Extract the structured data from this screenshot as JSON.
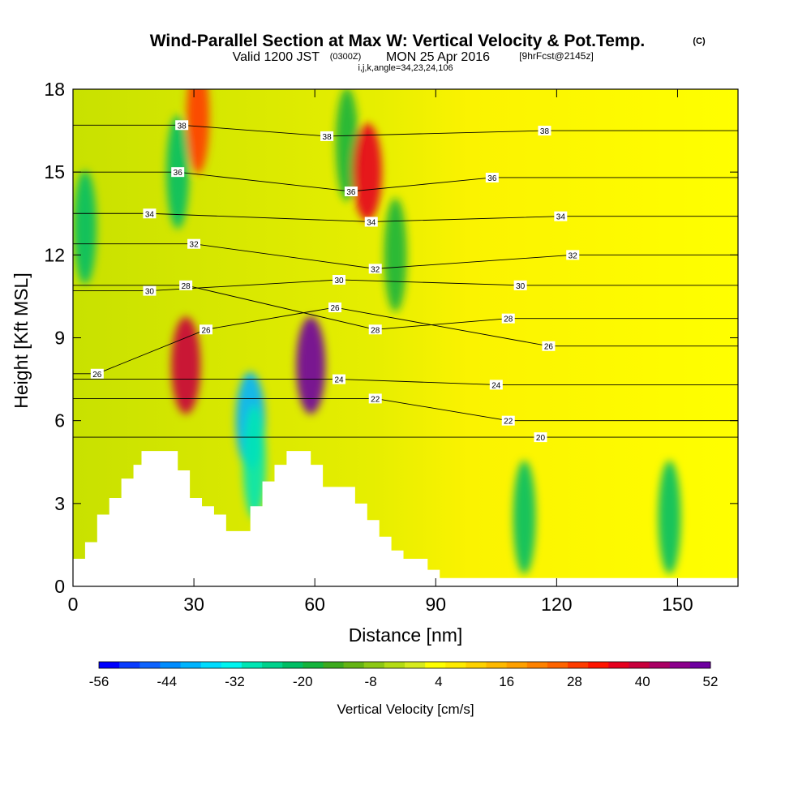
{
  "title": {
    "main": "Wind-Parallel Section at Max W: Vertical Velocity & Pot.Temp.",
    "copyright": "(C)",
    "valid_prefix": "Valid 1200 JST",
    "utc": "(0300Z)",
    "date": "MON 25 Apr 2016",
    "forecast": "[9hrFcst@2145z]",
    "indices": "i,j,k,angle=34,23,24,106"
  },
  "chart_data": {
    "type": "heatmap",
    "xlabel": "Distance [nm]",
    "ylabel": "Height [Kft MSL]",
    "xlim": [
      0,
      165
    ],
    "ylim": [
      0,
      18
    ],
    "x_ticks": [
      0,
      30,
      60,
      90,
      120,
      150
    ],
    "y_ticks": [
      0,
      3,
      6,
      9,
      12,
      15,
      18
    ],
    "colorbar": {
      "label": "Vertical Velocity [cm/s]",
      "min": -56,
      "max": 52,
      "step": 4,
      "tick_values": [
        -56,
        -44,
        -32,
        -20,
        -8,
        4,
        16,
        28,
        40,
        52
      ],
      "colors": [
        "#0000ff",
        "#0a3cff",
        "#0f64ff",
        "#008cff",
        "#00b4ff",
        "#00dcff",
        "#00f5f0",
        "#00e6b4",
        "#00d28c",
        "#00be64",
        "#14b43c",
        "#3caa1e",
        "#64b414",
        "#8cc814",
        "#b4dc14",
        "#d7eb1e",
        "#ffff00",
        "#ffeb00",
        "#ffd200",
        "#ffb900",
        "#ffa000",
        "#ff8200",
        "#ff6400",
        "#ff3c00",
        "#ff1400",
        "#e6001e",
        "#c8003c",
        "#aa0064",
        "#8c008c",
        "#6e00a0"
      ]
    },
    "vertical_velocity_cells_cm_s": [
      {
        "x": 3,
        "y": 13,
        "value": -22,
        "note": "left edge downdraft column"
      },
      {
        "x": 26,
        "y": 15,
        "value": -22
      },
      {
        "x": 31,
        "y": 17,
        "value": 28
      },
      {
        "x": 28,
        "y": 8,
        "value": 40
      },
      {
        "x": 44,
        "y": 6,
        "value": -40
      },
      {
        "x": 45,
        "y": 4.5,
        "value": -30
      },
      {
        "x": 59,
        "y": 8,
        "value": 52
      },
      {
        "x": 68,
        "y": 16,
        "value": -20
      },
      {
        "x": 73,
        "y": 15,
        "value": 36
      },
      {
        "x": 80,
        "y": 12,
        "value": -20
      },
      {
        "x": 112,
        "y": 2.5,
        "value": -22
      },
      {
        "x": 148,
        "y": 2.5,
        "value": -22
      }
    ],
    "potential_temperature_contours": [
      {
        "value": 20,
        "label": "20",
        "label_at": [
          116,
          5.4
        ]
      },
      {
        "value": 22,
        "label": "22",
        "label_at": [
          75,
          6.8
        ]
      },
      {
        "value": 22,
        "label": "22",
        "label_at": [
          108,
          6.0
        ]
      },
      {
        "value": 24,
        "label": "24",
        "label_at": [
          66,
          7.5
        ]
      },
      {
        "value": 24,
        "label": "24",
        "label_at": [
          105,
          7.3
        ]
      },
      {
        "value": 26,
        "label": "26",
        "label_at": [
          6,
          7.7
        ]
      },
      {
        "value": 26,
        "label": "26",
        "label_at": [
          33,
          9.3
        ]
      },
      {
        "value": 26,
        "label": "26",
        "label_at": [
          65,
          10.1
        ]
      },
      {
        "value": 26,
        "label": "26",
        "label_at": [
          118,
          8.7
        ]
      },
      {
        "value": 28,
        "label": "28",
        "label_at": [
          28,
          10.9
        ]
      },
      {
        "value": 28,
        "label": "28",
        "label_at": [
          75,
          9.3
        ]
      },
      {
        "value": 28,
        "label": "28",
        "label_at": [
          108,
          9.7
        ]
      },
      {
        "value": 30,
        "label": "30",
        "label_at": [
          19,
          10.7
        ]
      },
      {
        "value": 30,
        "label": "30",
        "label_at": [
          66,
          11.1
        ]
      },
      {
        "value": 30,
        "label": "30",
        "label_at": [
          111,
          10.9
        ]
      },
      {
        "value": 32,
        "label": "32",
        "label_at": [
          30,
          12.4
        ]
      },
      {
        "value": 32,
        "label": "32",
        "label_at": [
          75,
          11.5
        ]
      },
      {
        "value": 32,
        "label": "32",
        "label_at": [
          124,
          12.0
        ]
      },
      {
        "value": 34,
        "label": "34",
        "label_at": [
          19,
          13.5
        ]
      },
      {
        "value": 34,
        "label": "34",
        "label_at": [
          74,
          13.2
        ]
      },
      {
        "value": 34,
        "label": "34",
        "label_at": [
          121,
          13.4
        ]
      },
      {
        "value": 36,
        "label": "36",
        "label_at": [
          26,
          15.0
        ]
      },
      {
        "value": 36,
        "label": "36",
        "label_at": [
          69,
          14.3
        ]
      },
      {
        "value": 36,
        "label": "36",
        "label_at": [
          104,
          14.8
        ]
      },
      {
        "value": 38,
        "label": "38",
        "label_at": [
          27,
          16.7
        ]
      },
      {
        "value": 38,
        "label": "38",
        "label_at": [
          63,
          16.3
        ]
      },
      {
        "value": 38,
        "label": "38",
        "label_at": [
          117,
          16.5
        ]
      }
    ],
    "terrain_profile_kft": [
      [
        0,
        1.0
      ],
      [
        3,
        1.0
      ],
      [
        3,
        1.6
      ],
      [
        6,
        1.6
      ],
      [
        6,
        2.6
      ],
      [
        9,
        2.6
      ],
      [
        9,
        3.2
      ],
      [
        12,
        3.2
      ],
      [
        12,
        3.9
      ],
      [
        15,
        3.9
      ],
      [
        15,
        4.4
      ],
      [
        17,
        4.4
      ],
      [
        17,
        4.9
      ],
      [
        26,
        4.9
      ],
      [
        26,
        4.2
      ],
      [
        29,
        4.2
      ],
      [
        29,
        3.2
      ],
      [
        32,
        3.2
      ],
      [
        32,
        2.9
      ],
      [
        35,
        2.9
      ],
      [
        35,
        2.6
      ],
      [
        38,
        2.6
      ],
      [
        38,
        2.0
      ],
      [
        44,
        2.0
      ],
      [
        44,
        2.9
      ],
      [
        47,
        2.9
      ],
      [
        47,
        3.8
      ],
      [
        50,
        3.8
      ],
      [
        50,
        4.4
      ],
      [
        53,
        4.4
      ],
      [
        53,
        4.9
      ],
      [
        59,
        4.9
      ],
      [
        59,
        4.4
      ],
      [
        62,
        4.4
      ],
      [
        62,
        3.6
      ],
      [
        70,
        3.6
      ],
      [
        70,
        3.0
      ],
      [
        73,
        3.0
      ],
      [
        73,
        2.4
      ],
      [
        76,
        2.4
      ],
      [
        76,
        1.8
      ],
      [
        79,
        1.8
      ],
      [
        79,
        1.3
      ],
      [
        82,
        1.3
      ],
      [
        82,
        1.0
      ],
      [
        88,
        1.0
      ],
      [
        88,
        0.6
      ],
      [
        91,
        0.6
      ],
      [
        91,
        0.3
      ],
      [
        165,
        0.3
      ]
    ]
  }
}
